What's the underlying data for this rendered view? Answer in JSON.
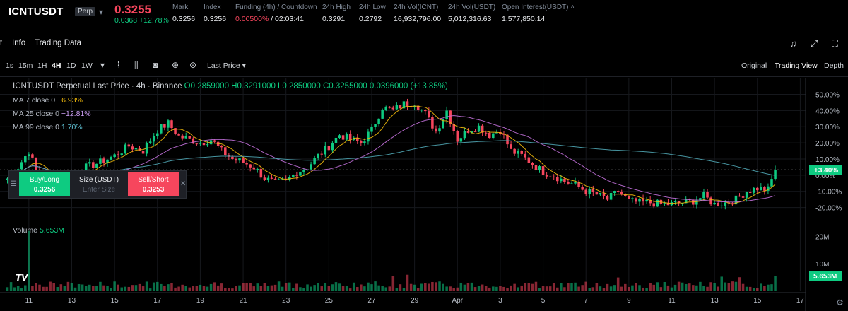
{
  "ticker": {
    "symbol": "ICNTUSDT",
    "contract": "Perp",
    "price": "0.3255",
    "change": "0.0368 +12.78%",
    "stats": [
      {
        "label": "Mark",
        "value": "0.3256"
      },
      {
        "label": "Index",
        "value": "0.3256"
      },
      {
        "label": "Funding (4h) / Countdown",
        "value_red": "0.00500%",
        "value": " / 02:03:41"
      },
      {
        "label": "24h High",
        "value": "0.3291"
      },
      {
        "label": "24h Low",
        "value": "0.2792"
      },
      {
        "label": "24h Vol(ICNT)",
        "value": "16,932,796.00"
      },
      {
        "label": "24h Vol(USDT)",
        "value": "5,012,316.63"
      },
      {
        "label": "Open Interest(USDT)",
        "value": "1,577,850.14"
      }
    ]
  },
  "tabs": [
    "t",
    "Info",
    "Trading Data"
  ],
  "toolbar": {
    "intervals": [
      "1s",
      "15m",
      "1H",
      "4H",
      "1D",
      "1W"
    ],
    "active_interval": "4H",
    "price_type": "Last Price",
    "views": [
      "Original",
      "Trading View",
      "Depth"
    ],
    "active_view": "Trading View"
  },
  "legend": {
    "title": "ICNTUSDT Perpetual Last Price · 4h · Binance",
    "ohlc": "O0.2859000 H0.3291000 L0.2850000 C0.3255000 0.0396000 (+13.85%)",
    "ma": [
      {
        "label": "MA 7 close 0",
        "value": "−6.93%"
      },
      {
        "label": "MA 25 close 0",
        "value": "−12.81%"
      },
      {
        "label": "MA 99 close 0",
        "value": "1.70%"
      }
    ],
    "volume_label": "Volume",
    "volume_value": "5.653M"
  },
  "trade_widget": {
    "buy_label": "Buy/Long",
    "buy_price": "0.3256",
    "size_label": "Size (USDT)",
    "size_placeholder": "Enter Size",
    "sell_label": "Sell/Short",
    "sell_price": "0.3253"
  },
  "colors": {
    "up": "#0ecb81",
    "down": "#f6465d",
    "ma7": "#f0b90b",
    "ma25": "#c06fd8",
    "ma99": "#4fa5b3",
    "grid": "#16181d"
  },
  "chart_data": {
    "type": "candlestick",
    "price_axis": {
      "unit": "%",
      "ticks": [
        "50.00%",
        "40.00%",
        "30.00%",
        "20.00%",
        "10.00%",
        "0.00%",
        "-10.00%",
        "-20.00%"
      ],
      "tick_values": [
        50,
        40,
        30,
        20,
        10,
        0,
        -10,
        -20
      ],
      "range": [
        -25,
        55
      ],
      "current_label": "+3.40%",
      "current_value": 3.4
    },
    "volume_axis": {
      "ticks": [
        "20M",
        "10M"
      ],
      "tick_values": [
        20,
        10
      ],
      "range": [
        0,
        25
      ],
      "current_label": "5.653M",
      "current_value": 5.653
    },
    "x_axis": {
      "labels": [
        "11",
        "13",
        "15",
        "17",
        "19",
        "21",
        "23",
        "25",
        "27",
        "29",
        "Apr",
        "3",
        "5",
        "7",
        "9",
        "11",
        "13",
        "15",
        "17"
      ],
      "label_index": [
        6,
        18,
        30,
        42,
        54,
        66,
        78,
        90,
        102,
        114,
        126,
        138,
        150,
        162,
        174,
        186,
        198,
        210,
        222
      ],
      "num_candles": 216
    },
    "close_path": [
      [
        0,
        -2
      ],
      [
        3,
        5
      ],
      [
        6,
        15
      ],
      [
        8,
        3
      ],
      [
        11,
        -5
      ],
      [
        14,
        -6
      ],
      [
        18,
        -3
      ],
      [
        22,
        5
      ],
      [
        26,
        8
      ],
      [
        30,
        12
      ],
      [
        34,
        18
      ],
      [
        38,
        15
      ],
      [
        42,
        28
      ],
      [
        45,
        32
      ],
      [
        48,
        24
      ],
      [
        51,
        22
      ],
      [
        54,
        20
      ],
      [
        57,
        22
      ],
      [
        60,
        15
      ],
      [
        63,
        10
      ],
      [
        66,
        8
      ],
      [
        69,
        5
      ],
      [
        72,
        -2
      ],
      [
        75,
        -5
      ],
      [
        78,
        -4
      ],
      [
        81,
        2
      ],
      [
        84,
        5
      ],
      [
        87,
        12
      ],
      [
        90,
        18
      ],
      [
        93,
        25
      ],
      [
        96,
        22
      ],
      [
        99,
        20
      ],
      [
        102,
        28
      ],
      [
        105,
        42
      ],
      [
        108,
        40
      ],
      [
        111,
        44
      ],
      [
        114,
        45
      ],
      [
        117,
        38
      ],
      [
        120,
        27
      ],
      [
        123,
        40
      ],
      [
        126,
        22
      ],
      [
        129,
        28
      ],
      [
        132,
        30
      ],
      [
        135,
        25
      ],
      [
        138,
        28
      ],
      [
        141,
        15
      ],
      [
        144,
        12
      ],
      [
        147,
        7
      ],
      [
        150,
        2
      ],
      [
        153,
        0
      ],
      [
        156,
        -4
      ],
      [
        159,
        -6
      ],
      [
        162,
        -10
      ],
      [
        165,
        -12
      ],
      [
        168,
        -15
      ],
      [
        171,
        -10
      ],
      [
        174,
        -16
      ],
      [
        177,
        -17
      ],
      [
        180,
        -17
      ],
      [
        183,
        -18
      ],
      [
        186,
        -18
      ],
      [
        189,
        -17
      ],
      [
        192,
        -16
      ],
      [
        195,
        -13
      ],
      [
        198,
        -18
      ],
      [
        201,
        -17
      ],
      [
        204,
        -15
      ],
      [
        207,
        -10
      ],
      [
        210,
        -8
      ],
      [
        213,
        -9
      ],
      [
        215,
        3.4
      ]
    ],
    "series": [
      {
        "name": "MA 7 close 0",
        "value": "−6.93%"
      },
      {
        "name": "MA 25 close 0",
        "value": "−12.81%"
      },
      {
        "name": "MA 99 close 0",
        "value": "1.70%"
      }
    ],
    "volume_spikes": [
      [
        6,
        22
      ],
      [
        108,
        5.5
      ],
      [
        112,
        6
      ],
      [
        171,
        5
      ],
      [
        200,
        5.3
      ],
      [
        205,
        5.1
      ],
      [
        215,
        5.653
      ]
    ]
  }
}
